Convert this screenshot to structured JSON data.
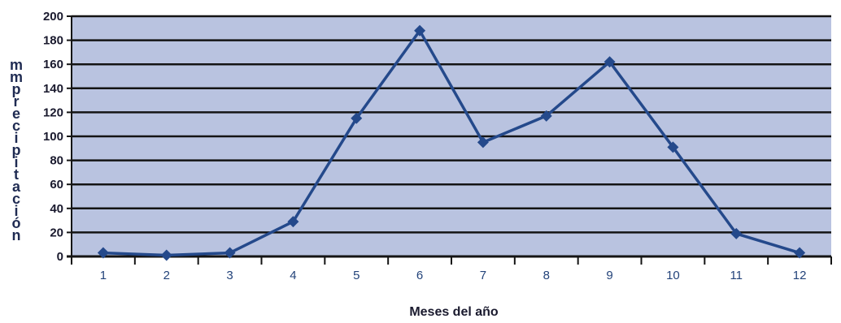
{
  "chart_data": {
    "type": "line",
    "title": "",
    "xlabel": "Meses del año",
    "ylabel": "mm precipitación",
    "categories": [
      "1",
      "2",
      "3",
      "4",
      "5",
      "6",
      "7",
      "8",
      "9",
      "10",
      "11",
      "12"
    ],
    "series": [
      {
        "values": [
          3,
          1,
          3,
          29,
          115,
          188,
          95,
          117,
          162,
          91,
          19,
          3
        ]
      }
    ],
    "ylim": [
      0,
      200
    ],
    "yticks": [
      "0",
      "20",
      "40",
      "60",
      "80",
      "100",
      "120",
      "140",
      "160",
      "180",
      "200"
    ],
    "grid": true,
    "colors": {
      "plot_background": "#b9c3e0",
      "gridline": "#141414",
      "line": "#24498b"
    }
  }
}
